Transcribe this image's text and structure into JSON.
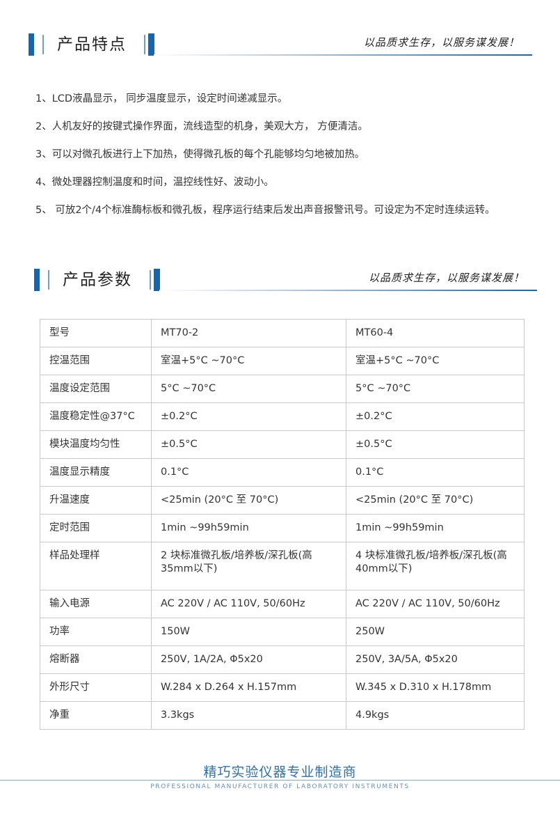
{
  "section1": {
    "title": "产品特点",
    "slogan": "以品质求生存，以服务谋发展！"
  },
  "features": [
    "1、LCD液晶显示， 同步温度显示，设定时间递减显示。",
    "2、人机友好的按键式操作界面，流线造型的机身，美观大方， 方便清洁。",
    "3、可以对微孔板进行上下加热，使得微孔板的每个孔能够均匀地被加热。",
    "4、微处理器控制温度和时间，温控线性好、波动小。",
    "5、 可放2个/4个标准酶标板和微孔板，程序运行结束后发出声音报警讯号。可设定为不定时连续运转。"
  ],
  "section2": {
    "title": "产品参数",
    "slogan": "以品质求生存，以服务谋发展！"
  },
  "table": [
    [
      "型号",
      "MT70-2",
      "MT60-4"
    ],
    [
      "控温范围",
      "室温+5°C ~70°C",
      "室温+5°C ~70°C"
    ],
    [
      "温度设定范围",
      "5°C ~70°C",
      "5°C ~70°C"
    ],
    [
      "温度稳定性@37°C",
      "±0.2°C",
      "±0.2°C"
    ],
    [
      "模块温度均匀性",
      "±0.5°C",
      "±0.5°C"
    ],
    [
      "温度显示精度",
      "0.1°C",
      "0.1°C"
    ],
    [
      "升温速度",
      "<25min (20°C 至 70°C)",
      "<25min (20°C 至 70°C)"
    ],
    [
      "定时范围",
      "1min ~99h59min",
      "1min ~99h59min"
    ],
    [
      "样品处理样",
      "2 块标准微孔板/培养板/深孔板(高35mm以下)",
      "4 块标准微孔板/培养板/深孔板(高40mm以下)"
    ],
    [
      "输入电源",
      "AC 220V / AC 110V, 50/60Hz",
      "AC 220V / AC 110V, 50/60Hz"
    ],
    [
      "功率",
      "150W",
      "250W"
    ],
    [
      "熔断器",
      "250V, 1A/2A, Φ5x20",
      "250V, 3A/5A, Φ5x20"
    ],
    [
      "外形尺寸",
      "W.284 x D.264 x H.157mm",
      "W.345 x D.310 x H.178mm"
    ],
    [
      "净重",
      "3.3kgs",
      "4.9kgs"
    ]
  ],
  "footer": {
    "cn": "精巧实验仪器专业制造商",
    "en": "PROFESSIONAL MANUFACTURER OF LABORATORY INSTRUMENTS"
  },
  "colors": {
    "accent": "#1566b0"
  }
}
